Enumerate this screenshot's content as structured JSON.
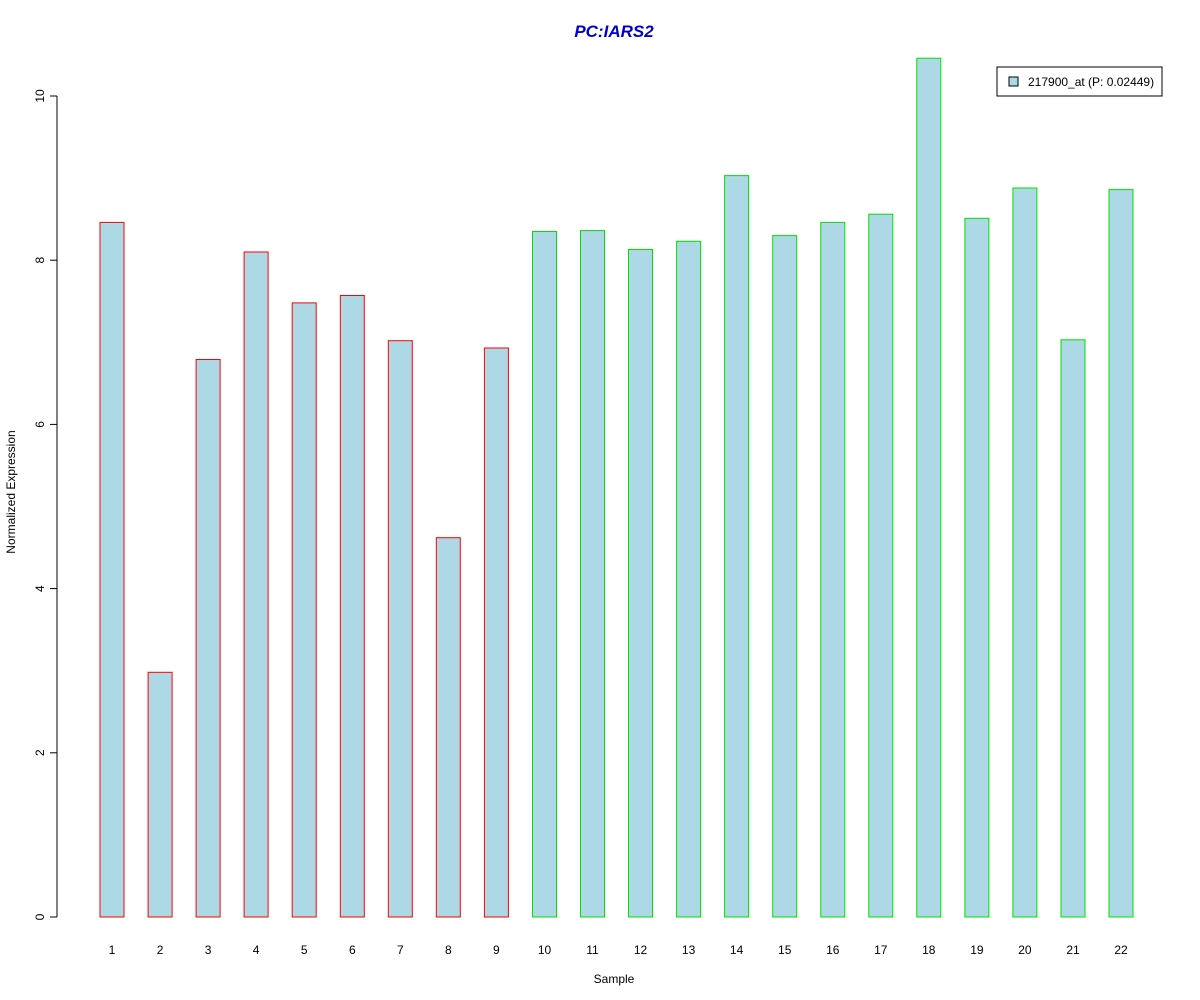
{
  "chart_data": {
    "type": "bar",
    "title": "PC:IARS2",
    "xlabel": "Sample",
    "ylabel": "Normalized Expression",
    "categories": [
      "1",
      "2",
      "3",
      "4",
      "5",
      "6",
      "7",
      "8",
      "9",
      "10",
      "11",
      "12",
      "13",
      "14",
      "15",
      "16",
      "17",
      "18",
      "19",
      "20",
      "21",
      "22"
    ],
    "values": [
      8.46,
      2.98,
      6.79,
      8.1,
      7.48,
      7.57,
      7.02,
      4.62,
      6.93,
      8.35,
      8.36,
      8.13,
      8.23,
      9.03,
      8.3,
      8.46,
      8.56,
      10.46,
      8.51,
      8.88,
      7.03,
      8.86
    ],
    "groups": [
      "red",
      "red",
      "red",
      "red",
      "red",
      "red",
      "red",
      "red",
      "red",
      "green",
      "green",
      "green",
      "green",
      "green",
      "green",
      "green",
      "green",
      "green",
      "green",
      "green",
      "green",
      "green"
    ],
    "ylim": [
      0,
      10.5
    ],
    "yticks": [
      0,
      2,
      4,
      6,
      8,
      10
    ],
    "grid": false,
    "legend": {
      "label": "217900_at (P: 0.02449)",
      "placement": "top-right"
    },
    "colors": {
      "fill": "#add8e6",
      "red": "#ff0000",
      "green": "#00e000",
      "title": "#0000cc"
    }
  }
}
